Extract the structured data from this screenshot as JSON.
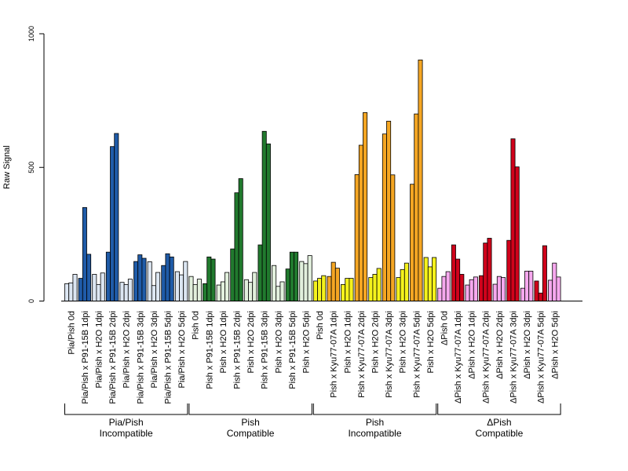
{
  "chart_data": {
    "type": "bar",
    "title": "",
    "xlabel": "",
    "ylabel": "Raw Signal",
    "ylim": [
      0,
      1000
    ],
    "yticks": [
      0,
      500,
      1000
    ],
    "grid": false,
    "legend": "none",
    "categories": [
      {
        "label": "Pia/Pish 0d",
        "color": "#dce6f2",
        "values": [
          65,
          68,
          100
        ]
      },
      {
        "label": "Pia/Pish x P91-15B 1dpi",
        "color": "#1f5ba8",
        "values": [
          85,
          350,
          175
        ]
      },
      {
        "label": "Pia/Pish x H2O 1dpi",
        "color": "#dce6f2",
        "values": [
          100,
          62,
          105
        ]
      },
      {
        "label": "Pia/Pish x P91-15B 2dpi",
        "color": "#1f5ba8",
        "values": [
          183,
          578,
          627
        ]
      },
      {
        "label": "Pia/Pish x H2O 2dpi",
        "color": "#dce6f2",
        "values": [
          70,
          62,
          82
        ]
      },
      {
        "label": "Pia/Pish x P91-15B 3dpi",
        "color": "#1f5ba8",
        "values": [
          148,
          173,
          160
        ]
      },
      {
        "label": "Pia/Pish x H2O 3dpi",
        "color": "#dce6f2",
        "values": [
          147,
          58,
          107
        ]
      },
      {
        "label": "Pia/Pish x P91-15B 5dpi",
        "color": "#1f5ba8",
        "values": [
          133,
          177,
          165
        ]
      },
      {
        "label": "Pia/Pish x H2O 5dpi",
        "color": "#dce6f2",
        "values": [
          110,
          98,
          148
        ]
      },
      {
        "label": "Pish 0d",
        "color": "#e2f0dd",
        "values": [
          92,
          62,
          82
        ]
      },
      {
        "label": "Pish x P91-15B 1dpi",
        "color": "#217a2e",
        "values": [
          65,
          165,
          157
        ]
      },
      {
        "label": "Pish x H2O 1dpi",
        "color": "#e2f0dd",
        "values": [
          60,
          72,
          107
        ]
      },
      {
        "label": "Pish x P91-15B 2dpi",
        "color": "#217a2e",
        "values": [
          195,
          405,
          458
        ]
      },
      {
        "label": "Pish x H2O 2dpi",
        "color": "#e2f0dd",
        "values": [
          80,
          70,
          107
        ]
      },
      {
        "label": "Pish x P91-15B 3dpi",
        "color": "#217a2e",
        "values": [
          210,
          635,
          588
        ]
      },
      {
        "label": "Pish x H2O 3dpi",
        "color": "#e2f0dd",
        "values": [
          133,
          55,
          72
        ]
      },
      {
        "label": "Pish x P91-15B 5dpi",
        "color": "#217a2e",
        "values": [
          120,
          183,
          183
        ]
      },
      {
        "label": "Pish x H2O 5dpi",
        "color": "#e2f0dd",
        "values": [
          148,
          140,
          170
        ]
      },
      {
        "label": "Pish 0d",
        "color": "#f5f21c",
        "values": [
          75,
          85,
          95
        ]
      },
      {
        "label": "Pish x Kyu77-07A 1dpi",
        "color": "#f5a623",
        "values": [
          92,
          145,
          123
        ]
      },
      {
        "label": "Pish x H2O 1dpi",
        "color": "#f5f21c",
        "values": [
          62,
          85,
          85
        ]
      },
      {
        "label": "Pish x Kyu77-07A 2dpi",
        "color": "#f5a623",
        "values": [
          473,
          583,
          705
        ]
      },
      {
        "label": "Pish x H2O 2dpi",
        "color": "#f5f21c",
        "values": [
          88,
          100,
          122
        ]
      },
      {
        "label": "Pish x Kyu77-07A 3dpi",
        "color": "#f5a623",
        "values": [
          625,
          673,
          472
        ]
      },
      {
        "label": "Pish x H2O 3dpi",
        "color": "#f5f21c",
        "values": [
          88,
          118,
          142
        ]
      },
      {
        "label": "Pish x Kyu77-07A 5dpi",
        "color": "#f5a623",
        "values": [
          437,
          700,
          902
        ]
      },
      {
        "label": "Pish x H2O 5dpi",
        "color": "#f5f21c",
        "values": [
          163,
          128,
          163
        ]
      },
      {
        "label": "ΔPish 0d",
        "color": "#f6a8ee",
        "values": [
          48,
          92,
          110
        ]
      },
      {
        "label": "ΔPish x Kyu77-07A 1dpi",
        "color": "#d0021b",
        "values": [
          210,
          157,
          100
        ]
      },
      {
        "label": "ΔPish x H2O 1dpi",
        "color": "#f6a8ee",
        "values": [
          60,
          80,
          90
        ]
      },
      {
        "label": "ΔPish x Kyu77-07A 2dpi",
        "color": "#d0021b",
        "values": [
          95,
          217,
          235
        ]
      },
      {
        "label": "ΔPish x H2O 2dpi",
        "color": "#f6a8ee",
        "values": [
          63,
          92,
          88
        ]
      },
      {
        "label": "ΔPish x Kyu77-07A 3dpi",
        "color": "#d0021b",
        "values": [
          227,
          607,
          502
        ]
      },
      {
        "label": "ΔPish x H2O 3dpi",
        "color": "#f6a8ee",
        "values": [
          48,
          112,
          112
        ]
      },
      {
        "label": "ΔPish x Kyu77-07A 5dpi",
        "color": "#d0021b",
        "values": [
          75,
          30,
          207
        ]
      },
      {
        "label": "ΔPish x H2O 5dpi",
        "color": "#f6a8ee",
        "values": [
          78,
          142,
          90
        ]
      }
    ],
    "groups": [
      {
        "line1": "Pia/Pish",
        "line2": "Incompatible",
        "start": 0,
        "end": 8
      },
      {
        "line1": "Pish",
        "line2": "Compatible",
        "start": 9,
        "end": 17
      },
      {
        "line1": "Pish",
        "line2": "Incompatible",
        "start": 18,
        "end": 26
      },
      {
        "line1": "ΔPish",
        "line2": "Compatible",
        "start": 27,
        "end": 35
      }
    ]
  }
}
